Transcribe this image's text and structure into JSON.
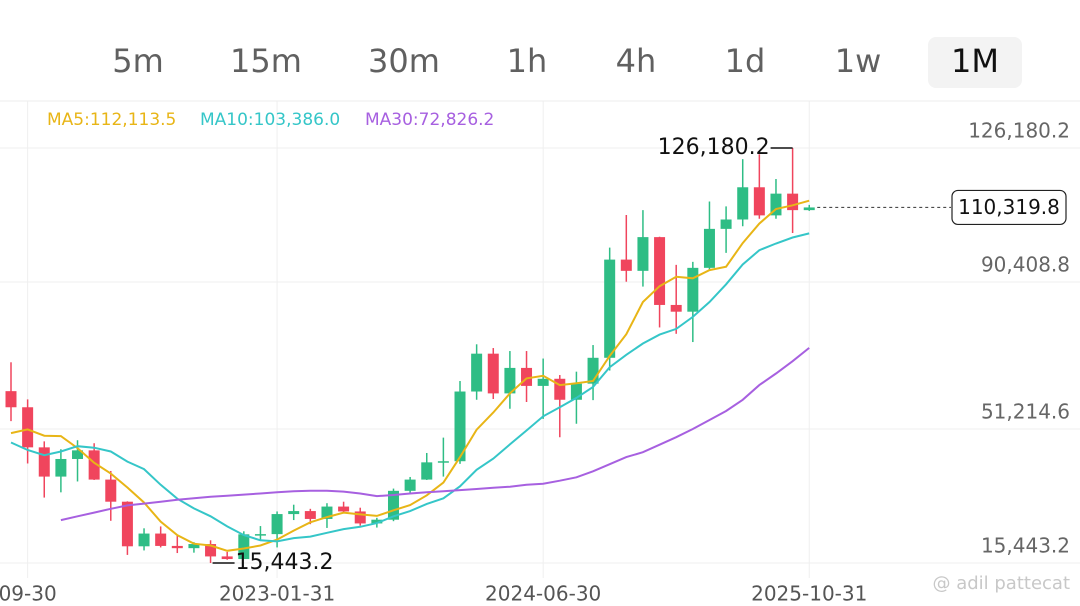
{
  "tabs": {
    "items": [
      "5m",
      "15m",
      "30m",
      "1h",
      "4h",
      "1d",
      "1w",
      "1M"
    ],
    "selected": "1M"
  },
  "watermark": "@ adil pattecat",
  "chart_data": {
    "type": "candlestick",
    "categories": [
      null,
      "09-30",
      null,
      null,
      null,
      null,
      null,
      null,
      null,
      null,
      null,
      null,
      null,
      null,
      null,
      null,
      "2023-01-31",
      null,
      null,
      null,
      null,
      null,
      null,
      null,
      null,
      null,
      null,
      null,
      null,
      null,
      null,
      null,
      "2024-06-30",
      null,
      null,
      null,
      null,
      null,
      null,
      null,
      null,
      null,
      null,
      null,
      null,
      null,
      null,
      null,
      "2025-10-31"
    ],
    "open": [
      61300,
      57000,
      46300,
      38500,
      43200,
      45500,
      37700,
      31800,
      19900,
      23300,
      20000,
      19400,
      20500,
      17200,
      16500,
      23100,
      23150,
      28500,
      29300,
      27200,
      30500,
      29200,
      26000,
      27000,
      34700,
      37700,
      42300,
      42600,
      61200,
      71300,
      60700,
      67500,
      62700,
      64600,
      59000,
      63300,
      70200,
      96400,
      93400,
      102400,
      84300,
      82500,
      94200,
      104600,
      107100,
      115700,
      108200,
      114000,
      109600
    ],
    "high": [
      69000,
      59100,
      47900,
      45800,
      48200,
      47400,
      40000,
      31900,
      24700,
      25200,
      22800,
      21000,
      21500,
      18400,
      23900,
      25300,
      29200,
      31000,
      29900,
      31400,
      31800,
      30200,
      27500,
      35300,
      38400,
      44800,
      48900,
      64000,
      73800,
      72800,
      72000,
      72000,
      70000,
      65600,
      66500,
      73600,
      99600,
      108300,
      109600,
      102500,
      95000,
      95800,
      111900,
      110600,
      123200,
      124500,
      117900,
      126180.2,
      111000
    ],
    "low": [
      53300,
      42000,
      32900,
      34300,
      37200,
      37600,
      26700,
      17600,
      18800,
      19600,
      18100,
      18200,
      15443.2,
      16300,
      16500,
      21400,
      19600,
      26900,
      25800,
      24800,
      28900,
      25400,
      24900,
      26600,
      34100,
      37600,
      38500,
      41900,
      59000,
      59200,
      56600,
      58400,
      53900,
      49000,
      52600,
      58900,
      66800,
      90500,
      89200,
      78300,
      76600,
      74400,
      93400,
      98200,
      105300,
      107300,
      107300,
      103500,
      109400
    ],
    "close": [
      57000,
      46300,
      38500,
      43200,
      45500,
      37700,
      31800,
      19900,
      23300,
      20000,
      19400,
      20500,
      17200,
      16500,
      23100,
      23150,
      28500,
      29300,
      27200,
      30500,
      29200,
      26000,
      27000,
      34700,
      37700,
      42300,
      42600,
      61200,
      71300,
      60700,
      67500,
      62700,
      64600,
      59000,
      63300,
      70200,
      96400,
      93400,
      102400,
      84300,
      82500,
      94200,
      104600,
      107100,
      115700,
      108200,
      114000,
      109600,
      110319.8
    ],
    "up_color": "#2ebd85",
    "down_color": "#f0455d",
    "moving_averages": [
      {
        "label": "MA5:112,113.5",
        "color": "#e8b516",
        "values": [
          50100,
          51100,
          49400,
          49300,
          46100,
          42200,
          39300,
          35600,
          31600,
          26500,
          22900,
          20600,
          20100,
          18700,
          19300,
          20100,
          21700,
          24100,
          26300,
          27700,
          28900,
          28400,
          28000,
          29500,
          30900,
          33500,
          36900,
          43700,
          51000,
          55600,
          60700,
          64700,
          65400,
          62900,
          63400,
          64000,
          70700,
          76500,
          85100,
          89300,
          91800,
          91400,
          93600,
          94500,
          100800,
          106000,
          109900,
          110900,
          112113.5
        ]
      },
      {
        "label": "MA10:103,386.0",
        "color": "#35c6c8",
        "values": [
          47600,
          45600,
          44200,
          45200,
          46600,
          46200,
          45200,
          42500,
          40500,
          36300,
          32600,
          30000,
          27900,
          25200,
          22900,
          21500,
          21200,
          22100,
          22500,
          23500,
          24500,
          25100,
          26100,
          27900,
          29300,
          31200,
          32700,
          35900,
          40300,
          43300,
          47100,
          50800,
          54600,
          57000,
          59500,
          62400,
          67700,
          71000,
          74000,
          76400,
          77900,
          81100,
          85100,
          89800,
          95100,
          98900,
          100700,
          102300,
          103386.0
        ]
      },
      {
        "label": "MA30:72,826.2",
        "color": "#a760e0",
        "values": [
          null,
          null,
          null,
          26900,
          27900,
          28900,
          29900,
          30800,
          31300,
          31800,
          32300,
          32700,
          33100,
          33400,
          33700,
          34000,
          34300,
          34600,
          34700,
          34700,
          34500,
          34000,
          33300,
          33600,
          34000,
          34300,
          34600,
          34900,
          35200,
          35500,
          35800,
          36300,
          36600,
          37400,
          38300,
          39900,
          41800,
          43700,
          45000,
          47000,
          49000,
          51200,
          53600,
          56000,
          59000,
          62900,
          66000,
          69300,
          72826.2
        ]
      }
    ],
    "ylim": [
      11441,
      138987
    ],
    "yticks": [
      {
        "value": 126180.2,
        "label": "126,180.2"
      },
      {
        "value": 90408.8,
        "label": "90,408.8"
      },
      {
        "value": 51214.6,
        "label": "51,214.6"
      },
      {
        "value": 15443.2,
        "label": "15,443.2"
      }
    ],
    "grid": true,
    "last_price": 110319.8,
    "last_price_label": "110,319.8",
    "max_label": "126,180.2",
    "min_label": "15,443.2"
  }
}
